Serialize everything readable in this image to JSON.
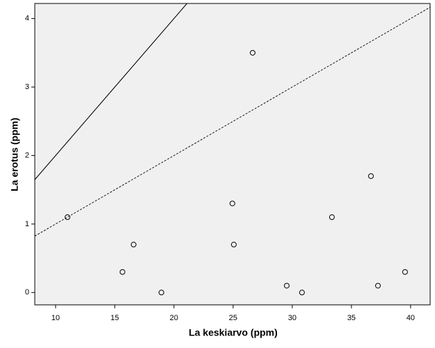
{
  "chart_data": {
    "type": "scatter",
    "x_label": "La keskiarvo (ppm)",
    "y_label": "La erotus (ppm)",
    "x": [
      11,
      15.65,
      16.59,
      18.94,
      24.94,
      25.06,
      26.65,
      29.53,
      30.82,
      33.35,
      36.65,
      37.24,
      39.53
    ],
    "y": [
      1.1,
      0.3,
      0.7,
      0,
      1.3,
      0.7,
      3.5,
      0.1,
      0,
      1.1,
      1.7,
      0.1,
      0.3
    ],
    "color": "#000000",
    "background": "#f0f0f0",
    "xlim": [
      8.24,
      41.65
    ],
    "ylim": [
      -0.18,
      4.22
    ],
    "xticks": [
      10,
      15,
      20,
      25,
      30,
      35,
      40
    ],
    "yticks": [
      0,
      1,
      2,
      3,
      4
    ],
    "reference_lines": [
      {
        "slope": 0.2,
        "dashed": false
      },
      {
        "slope": 0.1,
        "dashed": true
      }
    ]
  }
}
